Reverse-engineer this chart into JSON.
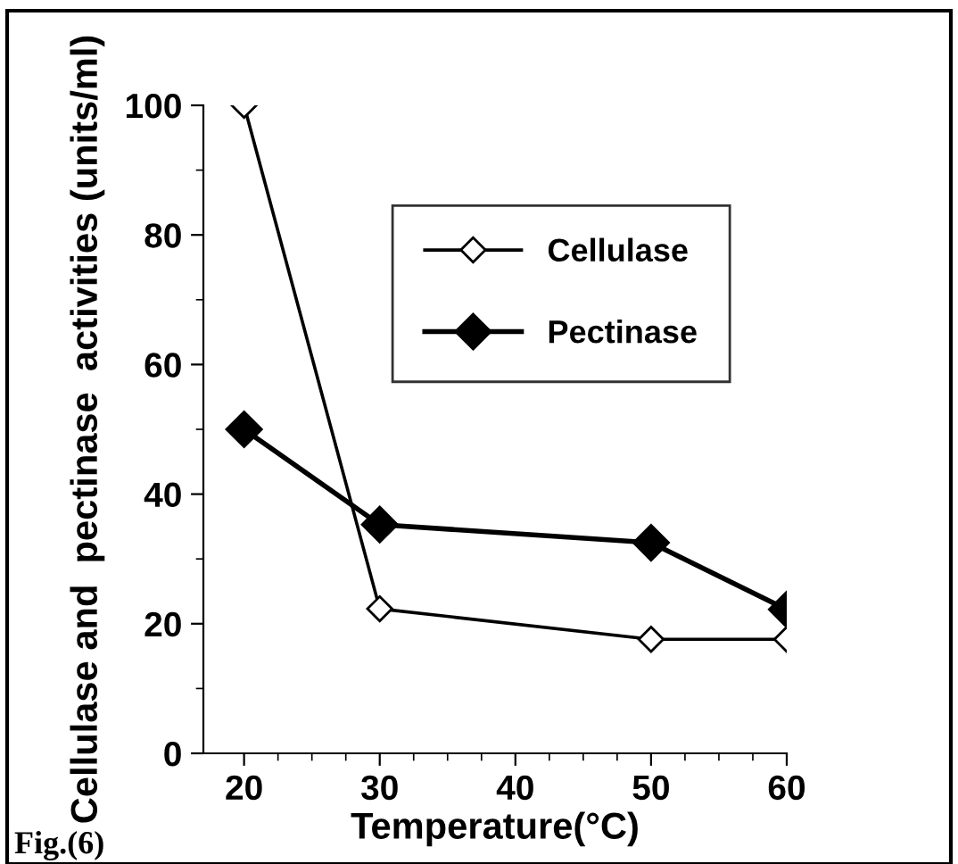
{
  "chart_data": {
    "type": "line",
    "xlabel": "Temperature(°C)",
    "ylabel": "Cellulase and  pectinase  activities (units/ml)",
    "xlim": [
      17,
      60
    ],
    "xticks": [
      20,
      30,
      40,
      50,
      60
    ],
    "ylim": [
      0,
      100
    ],
    "yticks": [
      0,
      20,
      40,
      60,
      80,
      100
    ],
    "x": [
      20,
      30,
      50,
      60
    ],
    "grid": false,
    "legend": "top right",
    "marker": "diamond",
    "line_style": "solid",
    "series": [
      {
        "name": "Cellulase",
        "color": "#ffffff",
        "values": [
          100,
          22.3,
          17.6,
          17.6
        ]
      },
      {
        "name": "Pectinase",
        "color": "#000000",
        "values": [
          50,
          35.3,
          32.5,
          22.2
        ]
      }
    ],
    "annotations": [
      "Fig.(6)"
    ]
  }
}
